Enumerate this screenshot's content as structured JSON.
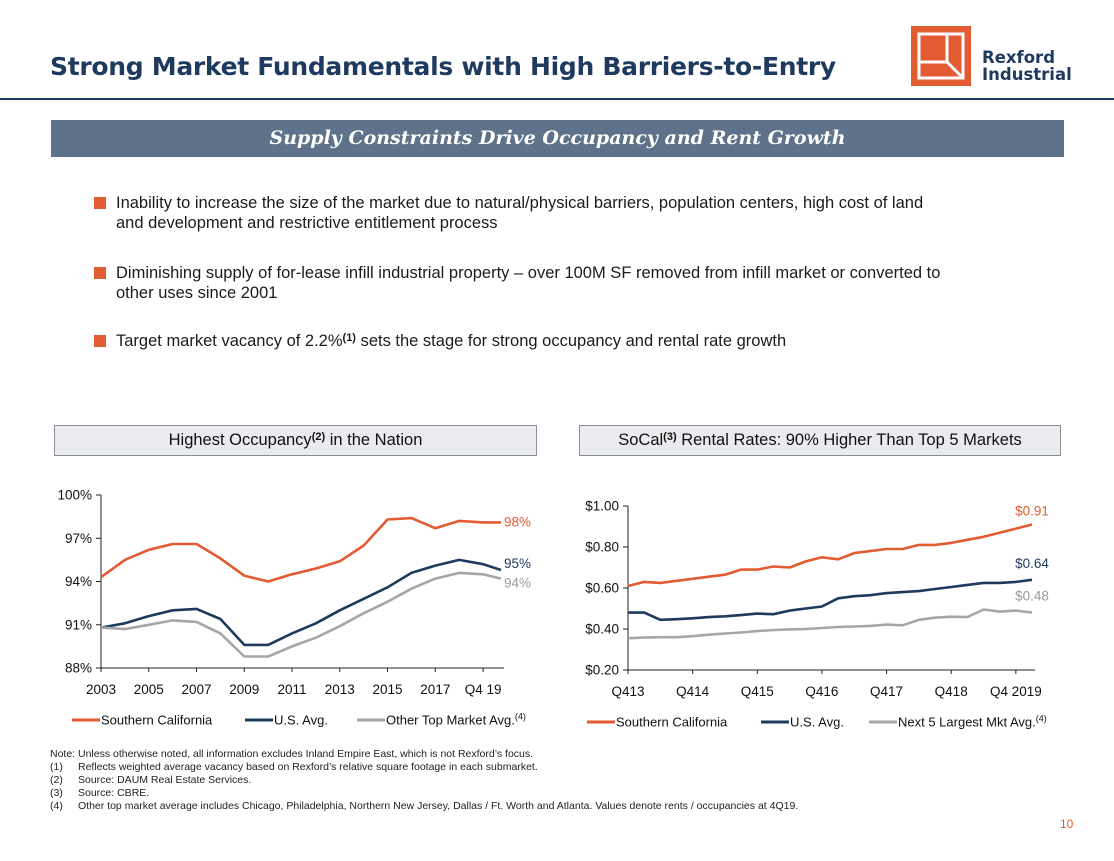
{
  "header": {
    "title": "Strong Market Fundamentals with High Barriers-to-Entry",
    "logo_line1": "Rexford",
    "logo_line2": "Industrial"
  },
  "banner": {
    "text": "Supply Constraints Drive Occupancy and Rent Growth"
  },
  "bullets": [
    {
      "line1": "Inability to increase the size of the market due to natural/physical barriers, population centers, high cost of land",
      "line2": "and development and restrictive entitlement process"
    },
    {
      "line1": "Diminishing supply of for-lease infill industrial property – over 100M SF removed from infill market or converted to",
      "line2": "other uses since 2001"
    },
    {
      "text_a": "Target market vacancy of 2.2%",
      "sup": "(1)",
      "text_b": " sets the stage for strong occupancy and rental rate growth"
    }
  ],
  "colors": {
    "accent": "#e35b32",
    "navy": "#1f3a5f",
    "gray": "#a6a6a6",
    "banner": "#5e7289"
  },
  "chart_data": [
    {
      "type": "line",
      "title_a": "Highest Occupancy",
      "title_sup": "(2)",
      "title_b": " in the Nation",
      "x": [
        2003,
        2004,
        2005,
        2006,
        2007,
        2008,
        2009,
        2010,
        2011,
        2012,
        2013,
        2014,
        2015,
        2016,
        2017,
        2018,
        2019,
        2019.75
      ],
      "x_ticks": [
        "2003",
        "2005",
        "2007",
        "2009",
        "2011",
        "2013",
        "2015",
        "2017",
        "Q4 19"
      ],
      "x_tick_values": [
        2003,
        2005,
        2007,
        2009,
        2011,
        2013,
        2015,
        2017,
        2019
      ],
      "y_ticks": [
        "88%",
        "91%",
        "94%",
        "97%",
        "100%"
      ],
      "y_tick_values": [
        88,
        91,
        94,
        97,
        100
      ],
      "ylim": [
        88,
        100
      ],
      "series": [
        {
          "name": "Southern California",
          "color": "#e35b32",
          "values": [
            94.3,
            95.5,
            96.2,
            96.6,
            96.6,
            95.6,
            94.4,
            94.0,
            94.5,
            94.9,
            95.4,
            96.5,
            98.3,
            98.4,
            97.7,
            98.2,
            98.1,
            98.1
          ],
          "end_label": "98%"
        },
        {
          "name": "U.S. Avg.",
          "color": "#1f3a5f",
          "values": [
            90.8,
            91.1,
            91.6,
            92.0,
            92.1,
            91.4,
            89.6,
            89.6,
            90.4,
            91.1,
            92.0,
            92.8,
            93.6,
            94.6,
            95.1,
            95.5,
            95.2,
            94.8
          ],
          "end_label": "95%"
        },
        {
          "name": "Other Top Market Avg.",
          "name_sup": "(4)",
          "color": "#a6a6a6",
          "values": [
            90.8,
            90.7,
            91.0,
            91.3,
            91.2,
            90.4,
            88.8,
            88.8,
            89.5,
            90.1,
            90.9,
            91.8,
            92.6,
            93.5,
            94.2,
            94.6,
            94.5,
            94.2
          ],
          "end_label": "94%"
        }
      ]
    },
    {
      "type": "line",
      "title_a": "SoCal",
      "title_sup": "(3)",
      "title_b": " Rental Rates: 90% Higher Than Top 5 Markets",
      "x": [
        0,
        1,
        2,
        3,
        4,
        5,
        6,
        7,
        8,
        9,
        10,
        11,
        12,
        13,
        14,
        15,
        16,
        17,
        18,
        19,
        20,
        21,
        22,
        23,
        24,
        25
      ],
      "x_ticks": [
        "Q413",
        "Q414",
        "Q415",
        "Q416",
        "Q417",
        "Q418",
        "Q4 2019"
      ],
      "x_tick_values": [
        0,
        4,
        8,
        12,
        16,
        20,
        24
      ],
      "y_ticks": [
        "$0.20",
        "$0.40",
        "$0.60",
        "$0.80",
        "$1.00"
      ],
      "y_tick_values": [
        0.2,
        0.4,
        0.6,
        0.8,
        1.0
      ],
      "ylim": [
        0.2,
        1.0
      ],
      "series": [
        {
          "name": "Southern California",
          "color": "#e35b32",
          "values": [
            0.61,
            0.63,
            0.625,
            0.635,
            0.645,
            0.655,
            0.665,
            0.69,
            0.69,
            0.705,
            0.7,
            0.73,
            0.75,
            0.74,
            0.77,
            0.78,
            0.79,
            0.79,
            0.81,
            0.81,
            0.82,
            0.835,
            0.85,
            0.87,
            0.89,
            0.91
          ],
          "end_label": "$0.91"
        },
        {
          "name": "U.S. Avg.",
          "color": "#1f3a5f",
          "values": [
            0.48,
            0.48,
            0.445,
            0.448,
            0.452,
            0.458,
            0.462,
            0.468,
            0.475,
            0.472,
            0.49,
            0.5,
            0.51,
            0.55,
            0.56,
            0.565,
            0.575,
            0.58,
            0.585,
            0.595,
            0.605,
            0.615,
            0.625,
            0.625,
            0.63,
            0.64
          ],
          "end_label": "$0.64"
        },
        {
          "name": "Next 5 Largest Mkt Avg.",
          "name_sup": "(4)",
          "color": "#a6a6a6",
          "values": [
            0.355,
            0.358,
            0.36,
            0.36,
            0.365,
            0.372,
            0.378,
            0.383,
            0.39,
            0.395,
            0.398,
            0.4,
            0.405,
            0.41,
            0.412,
            0.415,
            0.422,
            0.418,
            0.445,
            0.455,
            0.46,
            0.458,
            0.495,
            0.485,
            0.49,
            0.48
          ],
          "end_label": "$0.48"
        }
      ]
    }
  ],
  "notes": [
    {
      "num": "",
      "text": "Note: Unless otherwise noted, all information excludes Inland Empire East, which is not Rexford’s focus."
    },
    {
      "num": "(1)",
      "text": "Reflects weighted average vacancy based on Rexford’s relative square footage in each submarket."
    },
    {
      "num": "(2)",
      "text": "Source: DAUM Real Estate Services."
    },
    {
      "num": "(3)",
      "text": "Source: CBRE."
    },
    {
      "num": "(4)",
      "text": "Other top market average includes Chicago, Philadelphia, Northern New Jersey, Dallas / Ft. Worth and Atlanta. Values denote rents / occupancies at 4Q19."
    }
  ],
  "page_number": "10"
}
